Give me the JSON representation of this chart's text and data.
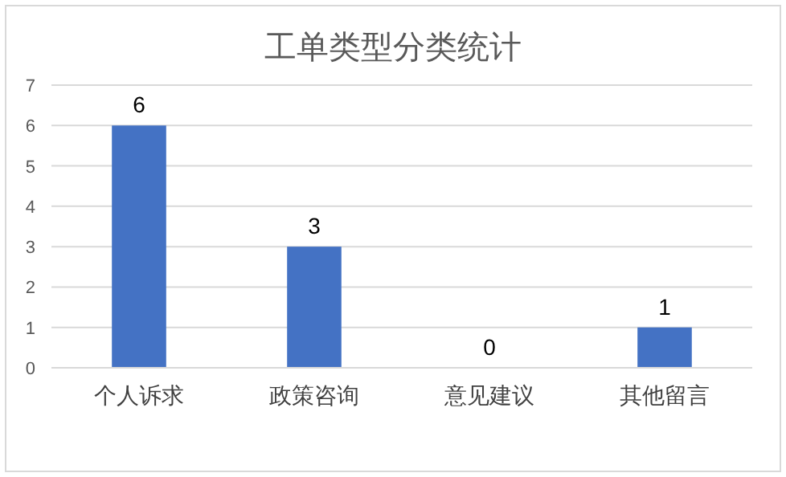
{
  "chart_data": {
    "type": "bar",
    "title": "工单类型分类统计",
    "categories": [
      "个人诉求",
      "政策咨询",
      "意见建议",
      "其他留言"
    ],
    "values": [
      6,
      3,
      0,
      1
    ],
    "color": "#4472c4",
    "ylim": [
      0,
      7
    ],
    "yticks": [
      0,
      1,
      2,
      3,
      4,
      5,
      6,
      7
    ],
    "grid": "y",
    "data_labels": true
  }
}
